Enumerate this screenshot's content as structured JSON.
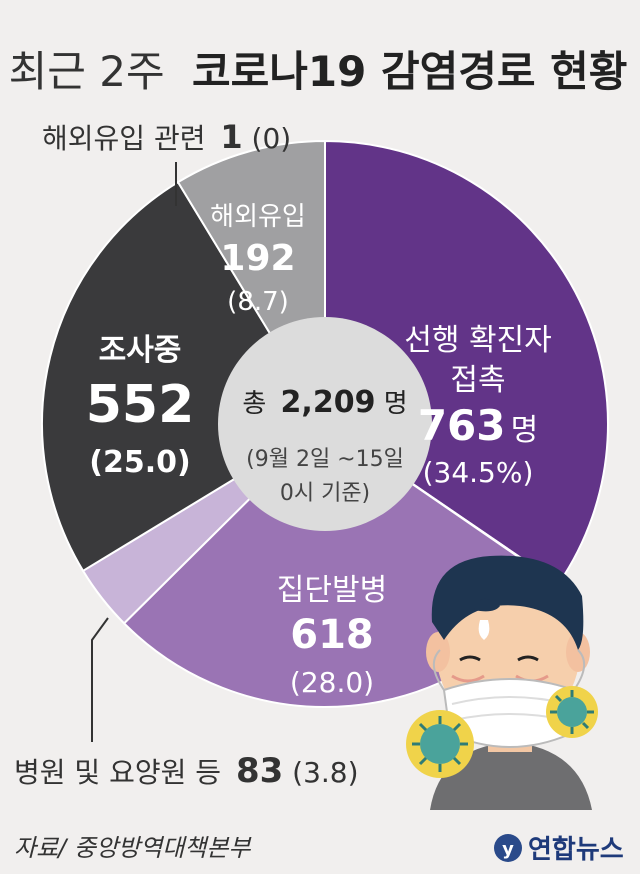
{
  "title": {
    "prefix": "최근 2주",
    "main": "코로나19 감염경로 현황"
  },
  "colors": {
    "background": "#f1efee",
    "contact": "#623488",
    "cluster": "#9a74b4",
    "hospital": "#c8b4d8",
    "investigating": "#3a3a3c",
    "overseas": "#a0a0a2",
    "center": "#dcdcdc"
  },
  "chart_data": {
    "type": "pie",
    "start_angle_deg": 0,
    "direction": "clockwise",
    "slices": [
      {
        "key": "contact",
        "label": "선행 확진자 접촉",
        "value": 763,
        "unit": "명",
        "percent": "34.5%"
      },
      {
        "key": "overseas_related",
        "label": "해외유입 관련",
        "value": 1,
        "percent": "0"
      },
      {
        "key": "cluster",
        "label": "집단발병",
        "value": 618,
        "percent": "28.0"
      },
      {
        "key": "hospital",
        "label": "병원 및 요양원 등",
        "value": 83,
        "percent": "3.8"
      },
      {
        "key": "investigating",
        "label": "조사중",
        "value": 552,
        "percent": "25.0"
      },
      {
        "key": "overseas",
        "label": "해외유입",
        "value": 192,
        "percent": "8.7"
      }
    ]
  },
  "labels": {
    "contact_line1": "선행 확진자",
    "contact_line2": "접촉",
    "contact_value": "763",
    "contact_unit": "명",
    "contact_pct": "(34.5%)",
    "cluster_name": "집단발병",
    "cluster_value": "618",
    "cluster_pct": "(28.0)",
    "investigating_name": "조사중",
    "investigating_value": "552",
    "investigating_pct": "(25.0)",
    "overseas_name": "해외유입",
    "overseas_value": "192",
    "overseas_pct": "(8.7)",
    "overseas_related_name": "해외유입 관련",
    "overseas_related_value": "1",
    "overseas_related_pct": "(0)",
    "hospital_name": "병원 및 요양원 등",
    "hospital_value": "83",
    "hospital_pct": "(3.8)"
  },
  "center": {
    "total_prefix": "총",
    "total_value": "2,209",
    "total_unit": "명",
    "period_line1": "(9월 2일 ~15일",
    "period_line2": "0시 기준)"
  },
  "footer": {
    "source": "자료/ 중앙방역대책본부",
    "agency": "연합뉴스"
  },
  "illustration": {
    "icons": [
      "masked-person-icon",
      "virus-icon"
    ]
  }
}
